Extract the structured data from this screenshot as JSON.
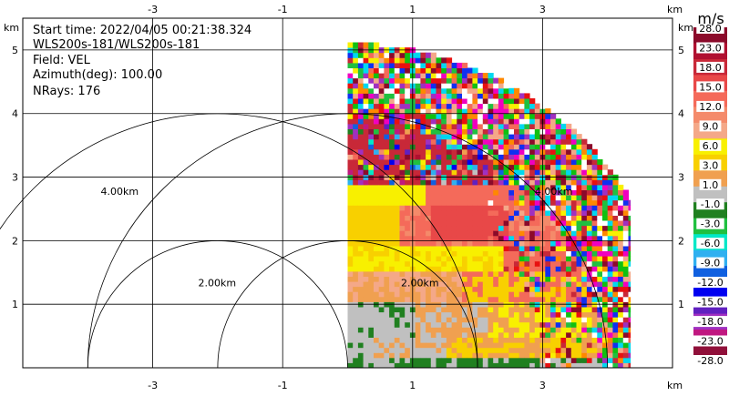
{
  "chart_data": {
    "type": "heatmap",
    "info": {
      "start_time": "Start time: 2022/04/05 00:21:38.324",
      "instrument": "WLS200s-181/WLS200s-181",
      "field": "Field: VEL",
      "azimuth": "Azimuth(deg): 100.00",
      "nrays": "NRays: 176"
    },
    "axis_unit_label": "km",
    "x_ticks": [
      "-3",
      "-1",
      "1",
      "3"
    ],
    "x_tick_values": [
      -3,
      -1,
      1,
      3
    ],
    "y_ticks": [
      "1",
      "2",
      "3",
      "4",
      "5"
    ],
    "y_tick_values": [
      1,
      2,
      3,
      4,
      5
    ],
    "xlim": [
      -5.0,
      5.0
    ],
    "ylim": [
      0.0,
      5.5
    ],
    "grid": true,
    "range_rings": [
      {
        "label": "2.00km",
        "radius_km": 2.0,
        "centers": [
          [
            0.0,
            0.0
          ],
          [
            -2.0,
            0.0
          ]
        ]
      },
      {
        "label": "4.00km",
        "radius_km": 4.0,
        "centers": [
          [
            0.0,
            0.0
          ],
          [
            -2.0,
            0.0
          ]
        ]
      }
    ],
    "ring_labels": [
      {
        "text": "4.00km",
        "x": -3.8,
        "y": 2.72
      },
      {
        "text": "2.00km",
        "x": -2.3,
        "y": 1.28
      },
      {
        "text": "2.00km",
        "x": 0.82,
        "y": 1.28
      },
      {
        "text": "4.00km",
        "x": 2.88,
        "y": 2.72
      }
    ],
    "data_sector": {
      "x_min": 0.0,
      "x_max": 4.35,
      "max_range_km": 5.1,
      "noisy_above_km": 3.9
    },
    "colorbar": {
      "unit": "m/s",
      "ticks": [
        "28.0",
        "23.0",
        "18.0",
        "15.0",
        "12.0",
        "9.0",
        "6.0",
        "3.0",
        "1.0",
        "-1.0",
        "-3.0",
        "-6.0",
        "-9.0",
        "-12.0",
        "-15.0",
        "-18.0",
        "-23.0",
        "-28.0"
      ],
      "colors": [
        "#8b0a2a",
        "#b01030",
        "#c82838",
        "#e84848",
        "#f46a5a",
        "#f48a6a",
        "#f4a888",
        "#f8f000",
        "#f8d000",
        "#f0a050",
        "#c0c0c0",
        "#208020",
        "#20c040",
        "#00e8c8",
        "#30b0f0",
        "#1060e0",
        "#0000f0",
        "#6020c0",
        "#a030c0",
        "#c01880",
        "#90103a"
      ]
    }
  }
}
